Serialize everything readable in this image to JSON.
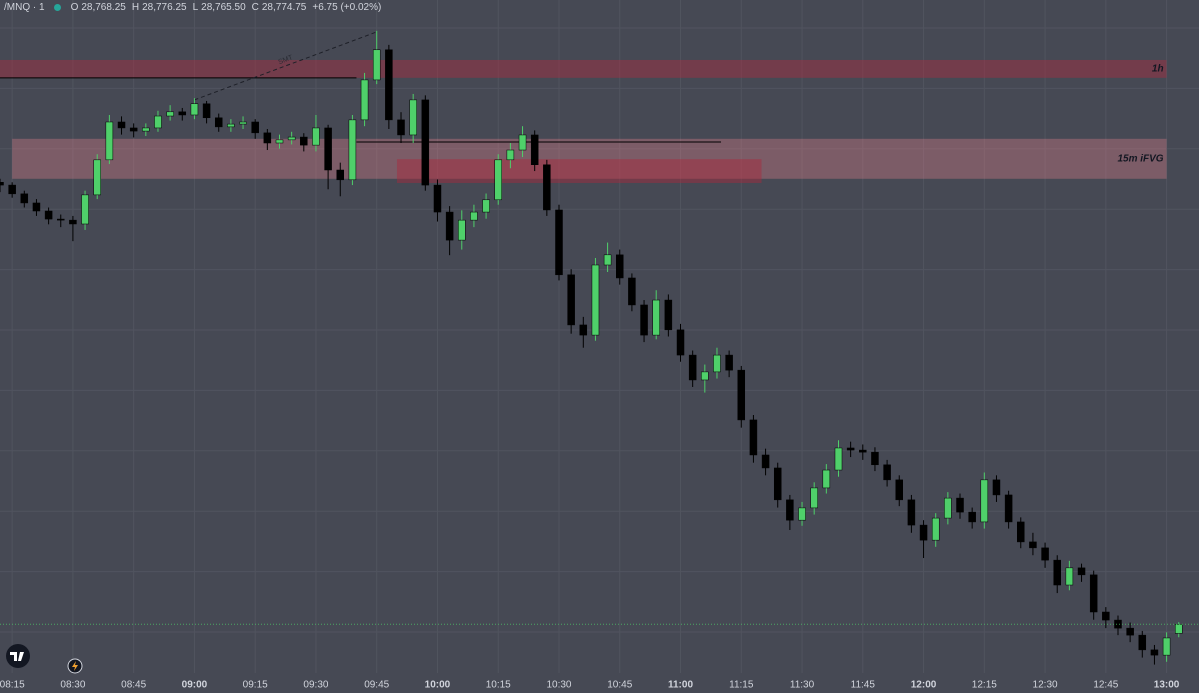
{
  "chart_data": {
    "type": "candlestick",
    "title": "/MNQ · 1",
    "fields": [
      {
        "key": "O",
        "value": "28,768.25"
      },
      {
        "key": "H",
        "value": "28,776.25"
      },
      {
        "key": "L",
        "value": "28,765.50"
      },
      {
        "key": "C",
        "value": "28,774.75"
      }
    ],
    "change": "+6.75 (+0.02%)",
    "up_color": "#4fd06a",
    "down_color": "#000000",
    "ylim": [
      28740,
      29220
    ],
    "xlim": [
      "08:12",
      "13:08"
    ],
    "xticks": [
      "08:15",
      "08:30",
      "08:45",
      "09:00",
      "09:15",
      "09:30",
      "09:45",
      "10:00",
      "10:15",
      "10:30",
      "10:45",
      "11:00",
      "11:15",
      "11:30",
      "11:45",
      "12:00",
      "12:15",
      "12:30",
      "12:45",
      "13:00"
    ],
    "grid": true,
    "x": [
      "08:12",
      "08:15",
      "08:18",
      "08:21",
      "08:24",
      "08:27",
      "08:30",
      "08:33",
      "08:36",
      "08:39",
      "08:42",
      "08:45",
      "08:48",
      "08:51",
      "08:54",
      "08:57",
      "09:00",
      "09:03",
      "09:06",
      "09:09",
      "09:12",
      "09:15",
      "09:18",
      "09:21",
      "09:24",
      "09:27",
      "09:30",
      "09:33",
      "09:36",
      "09:39",
      "09:42",
      "09:45",
      "09:48",
      "09:51",
      "09:54",
      "09:57",
      "10:00",
      "10:03",
      "10:06",
      "10:09",
      "10:12",
      "10:15",
      "10:18",
      "10:21",
      "10:24",
      "10:27",
      "10:30",
      "10:33",
      "10:36",
      "10:39",
      "10:42",
      "10:45",
      "10:48",
      "10:51",
      "10:54",
      "10:57",
      "11:00",
      "11:03",
      "11:06",
      "11:09",
      "11:12",
      "11:15",
      "11:18",
      "11:21",
      "11:24",
      "11:27",
      "11:30",
      "11:33",
      "11:36",
      "11:39",
      "11:42",
      "11:45",
      "11:48",
      "11:51",
      "11:54",
      "11:57",
      "12:00",
      "12:03",
      "12:06",
      "12:09",
      "12:12",
      "12:15",
      "12:18",
      "12:21",
      "12:24",
      "12:27",
      "12:30",
      "12:33",
      "12:36",
      "12:39",
      "12:42",
      "12:45",
      "12:48",
      "12:51",
      "12:54",
      "12:57",
      "13:00",
      "13:03"
    ],
    "open": [
      29090,
      29088,
      29081.75,
      29075.25,
      29069.5,
      29063.75,
      29063,
      29060.25,
      29081,
      29106,
      29133,
      29128.75,
      29126.5,
      29128.75,
      29137.25,
      29140.25,
      29138,
      29146,
      29136,
      29129.5,
      29131.5,
      29133,
      29125.25,
      29118,
      29120.25,
      29122.25,
      29116.5,
      29128.75,
      29098.75,
      29091.75,
      29134.5,
      29163,
      29184.5,
      29134.5,
      29123.75,
      29148.75,
      29088,
      29068.75,
      29048.75,
      29063,
      29068.75,
      29077.5,
      29106,
      29113,
      29123.75,
      29102.5,
      29070.25,
      29024,
      28988.25,
      28981,
      29031,
      29038.25,
      29021.75,
      29002.5,
      28981,
      29006,
      28984.75,
      28966.75,
      28949,
      28954.75,
      28966.75,
      28956,
      28920.5,
      28895.5,
      28886.25,
      28863.5,
      28849,
      28857.75,
      28872,
      28884.75,
      28900.5,
      28899,
      28897.5,
      28888.5,
      28877.75,
      28863.5,
      28845.5,
      28834.75,
      28850.5,
      28864.75,
      28854.75,
      28847.75,
      28877.75,
      28867,
      28847.75,
      28833.5,
      28829.25,
      28820.5,
      28802.75,
      28815,
      28810,
      28783.5,
      28777.75,
      28772,
      28767,
      28756.5,
      28752.75,
      28768.25
    ],
    "high": [
      29092.5,
      29090,
      29084,
      29078,
      29072,
      29067,
      29066,
      29084,
      29110,
      29138,
      29137,
      29132,
      29132,
      29141,
      29145,
      29143,
      29150,
      29148,
      29139,
      29135,
      29137,
      29135,
      29128,
      29124,
      29126,
      29125,
      29138,
      29131,
      29104,
      29138,
      29168,
      29198,
      29188,
      29140,
      29153,
      29152,
      29092,
      29073,
      29070,
      29074,
      29082,
      29110,
      29118,
      29130,
      29127,
      29106,
      29074,
      29028,
      28994,
      29036,
      29047,
      29042,
      29025,
      29006,
      29013,
      29010,
      28989,
      28970,
      28960,
      28972,
      28970,
      28959,
      28924,
      28900,
      28890,
      28867,
      28862,
      28876,
      28889,
      28906,
      28905,
      28903,
      28901,
      28892,
      28881,
      28867,
      28849,
      28854,
      28869,
      28868,
      28858,
      28883,
      28881,
      28870,
      28851,
      28840,
      28833,
      28824,
      28820,
      28818,
      28813,
      28787,
      28781,
      28776,
      28770,
      28760,
      28769,
      28776.25
    ],
    "low": [
      29083,
      29079,
      29072,
      29066,
      29060,
      29058,
      29048,
      29056,
      29078,
      29103,
      29124,
      29122,
      29123,
      29126,
      29134,
      29134,
      29135,
      29132,
      29126,
      29126,
      29128,
      29121,
      29113,
      29114,
      29117,
      29112,
      29112,
      29085,
      29080,
      29088,
      29130,
      29160,
      29128,
      29118,
      29118,
      29084,
      29062,
      29038,
      29042,
      29058,
      29064,
      29074,
      29100,
      29108,
      29098,
      29066,
      29020,
      28982,
      28972,
      28977,
      29026,
      29017,
      28998,
      28976,
      28978,
      28980,
      28962,
      28944,
      28940,
      28950,
      28951,
      28915,
      28890,
      28881,
      28858,
      28842,
      28845,
      28853,
      28868,
      28880,
      28894,
      28892,
      28884,
      28873,
      28859,
      28840,
      28822,
      28830,
      28846,
      28850,
      28843,
      28843,
      28862,
      28843,
      28829,
      28824,
      28815,
      28797,
      28799,
      28805,
      28778,
      28772,
      28767,
      28762,
      28751,
      28746,
      28748,
      28765.5
    ],
    "close": [
      29088,
      29081.75,
      29075.25,
      29069.5,
      29063.75,
      29063,
      29060.25,
      29081,
      29106,
      29133,
      29128.75,
      29126.5,
      29128.75,
      29137.25,
      29140.25,
      29138,
      29146,
      29136,
      29129.5,
      29131.5,
      29133,
      29125.25,
      29118,
      29120.25,
      29122.25,
      29116.5,
      29128.75,
      29098.75,
      29091.75,
      29134.5,
      29163,
      29184.5,
      29134.5,
      29123.75,
      29148.75,
      29088,
      29068.75,
      29048.75,
      29063,
      29068.75,
      29077.5,
      29106,
      29113,
      29123.75,
      29102.5,
      29070.25,
      29024,
      28988.25,
      28981,
      29031,
      29038.25,
      29021.75,
      29002.5,
      28981,
      29006,
      28984.75,
      28966.75,
      28949,
      28954.75,
      28966.75,
      28956,
      28920.5,
      28895.5,
      28886.25,
      28863.5,
      28849,
      28857.75,
      28872,
      28884.75,
      28900.5,
      28899,
      28897.5,
      28888.5,
      28877.75,
      28863.5,
      28845.5,
      28834.75,
      28850.5,
      28864.75,
      28854.75,
      28847.75,
      28877.75,
      28867,
      28847.75,
      28833.5,
      28829.25,
      28820.5,
      28802.75,
      28815,
      28810,
      28783.5,
      28777.75,
      28772,
      28767,
      28756.5,
      28752.75,
      28765,
      28774.75
    ],
    "zones": [
      {
        "label": "1h",
        "top": 29177.25,
        "bottom": 29164.5,
        "start": "08:12",
        "end": "13:00",
        "color": "rgba(170,45,65,0.45)"
      },
      {
        "label": "15m iFVG",
        "top": 29121,
        "bottom": 29092.5,
        "start": "08:15",
        "end": "13:00",
        "color": "rgba(225,130,140,0.35)"
      },
      {
        "top": 29106.5,
        "bottom": 29089.5,
        "start": "09:50",
        "end": "11:20",
        "color": "rgba(170,40,60,0.45)"
      }
    ],
    "levels": [
      {
        "value": 29164.5,
        "start": "08:12",
        "end": "09:40"
      },
      {
        "value": 29118.75,
        "start": "09:40",
        "end": "11:10"
      }
    ],
    "smt": {
      "label": "SMT",
      "from": {
        "x": "09:00",
        "y": 29148.75
      },
      "to": {
        "x": "09:45",
        "y": 29197.25
      }
    }
  }
}
